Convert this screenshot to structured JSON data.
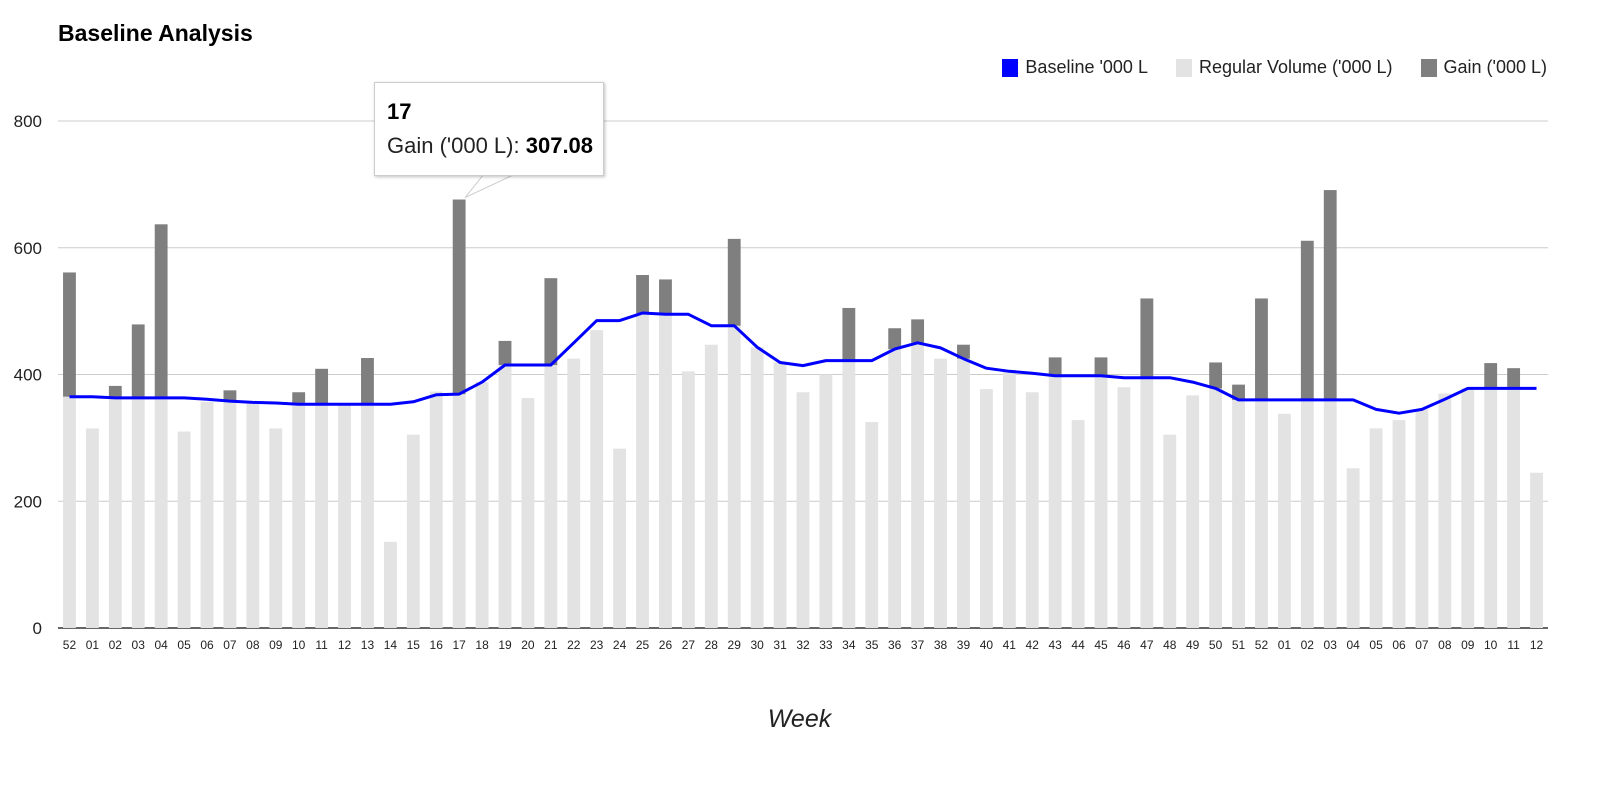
{
  "chart_data": {
    "type": "bar",
    "title": "Baseline Analysis",
    "xlabel": "Week",
    "ylabel": "",
    "ylim": [
      0,
      800
    ],
    "yticks": [
      0,
      200,
      400,
      600,
      800
    ],
    "grid": true,
    "legend_position": "top-right",
    "stacked": true,
    "categories": [
      "52",
      "01",
      "02",
      "03",
      "04",
      "05",
      "06",
      "07",
      "08",
      "09",
      "10",
      "11",
      "12",
      "13",
      "14",
      "15",
      "16",
      "17",
      "18",
      "19",
      "20",
      "21",
      "22",
      "23",
      "24",
      "25",
      "26",
      "27",
      "28",
      "29",
      "30",
      "31",
      "32",
      "33",
      "34",
      "35",
      "36",
      "37",
      "38",
      "39",
      "40",
      "41",
      "42",
      "43",
      "44",
      "45",
      "46",
      "47",
      "48",
      "49",
      "50",
      "51",
      "52",
      "01",
      "02",
      "03",
      "04",
      "05",
      "06",
      "07",
      "08",
      "09",
      "10",
      "11",
      "12"
    ],
    "series": [
      {
        "name": "Baseline '000 L",
        "type": "line",
        "color": "#0000ff",
        "values": [
          365,
          365,
          363,
          363,
          363,
          363,
          361,
          358,
          356,
          355,
          353,
          353,
          353,
          353,
          353,
          357,
          368,
          369,
          388,
          415,
          415,
          415,
          450,
          485,
          485,
          497,
          495,
          495,
          477,
          477,
          443,
          419,
          414,
          422,
          422,
          422,
          440,
          450,
          442,
          425,
          410,
          405,
          402,
          398,
          398,
          398,
          395,
          395,
          395,
          388,
          378,
          360,
          360,
          360,
          360,
          360,
          360,
          345,
          339,
          345,
          361,
          378,
          378,
          378,
          378
        ]
      },
      {
        "name": "Regular Volume ('000 L)",
        "type": "bar",
        "color": "#e3e3e3",
        "values": [
          365,
          315,
          363,
          363,
          363,
          310,
          357,
          358,
          356,
          315,
          353,
          353,
          353,
          353,
          136,
          305,
          373,
          369,
          388,
          415,
          363,
          415,
          425,
          470,
          283,
          497,
          495,
          405,
          447,
          477,
          443,
          419,
          372,
          400,
          422,
          325,
          440,
          450,
          425,
          425,
          377,
          405,
          372,
          398,
          328,
          398,
          380,
          395,
          305,
          367,
          378,
          360,
          360,
          338,
          360,
          360,
          252,
          315,
          328,
          345,
          370,
          378,
          378,
          378,
          245
        ]
      },
      {
        "name": "Gain ('000 L)",
        "type": "bar",
        "color": "#7f7f7f",
        "values": [
          196,
          0,
          19,
          116,
          274,
          0,
          0,
          17,
          0,
          0,
          19,
          56,
          0,
          73,
          0,
          0,
          0,
          307.08,
          0,
          38,
          0,
          137,
          0,
          0,
          0,
          60,
          55,
          0,
          0,
          137,
          0,
          0,
          0,
          0,
          83,
          0,
          33,
          37,
          0,
          22,
          0,
          0,
          0,
          29,
          0,
          29,
          0,
          125,
          0,
          0,
          41,
          24,
          160,
          0,
          251,
          331,
          0,
          0,
          0,
          0,
          0,
          0,
          40,
          32,
          0
        ]
      }
    ],
    "tooltip": {
      "category": "17",
      "series_label": "Gain ('000 L)",
      "value_text": "307.08"
    }
  }
}
